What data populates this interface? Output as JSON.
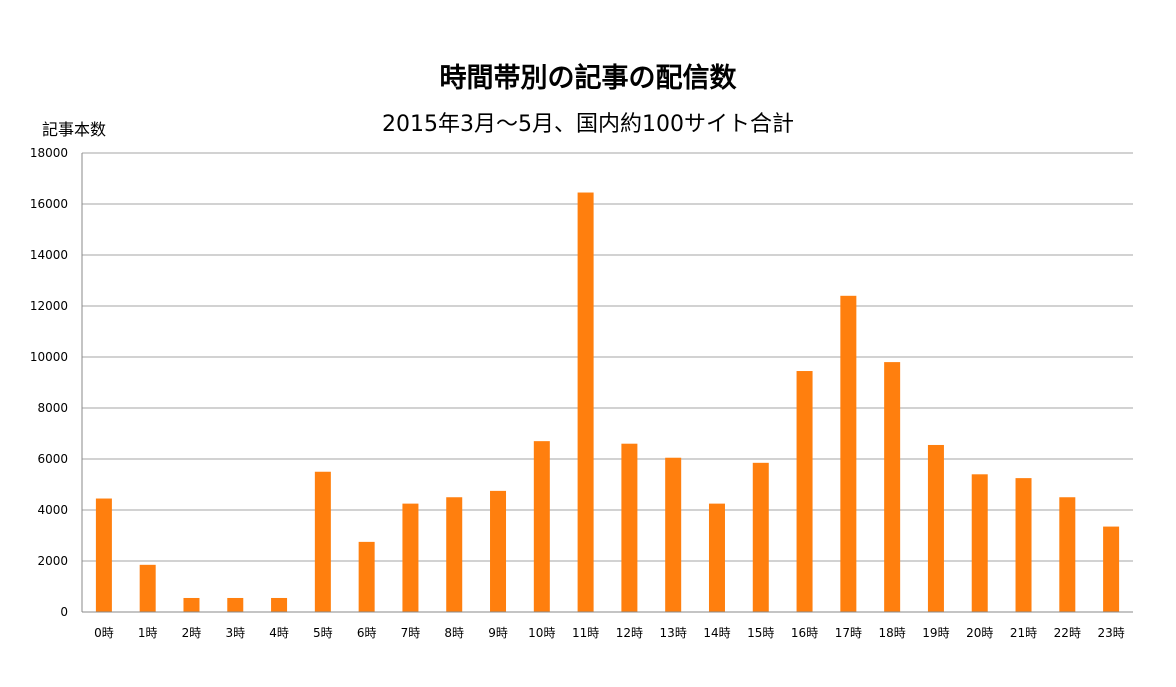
{
  "chart_data": {
    "type": "bar",
    "title": "時間帯別の記事の配信数",
    "subtitle": "2015年3月〜5月、国内約100サイト合計",
    "xlabel": "",
    "ylabel": "記事本数",
    "ylim": [
      0,
      18000
    ],
    "yticks": [
      0,
      2000,
      4000,
      6000,
      8000,
      10000,
      12000,
      14000,
      16000,
      18000
    ],
    "grid": true,
    "bar_color": "#ff7f0e",
    "categories": [
      "0時",
      "1時",
      "2時",
      "3時",
      "4時",
      "5時",
      "6時",
      "7時",
      "8時",
      "9時",
      "10時",
      "11時",
      "12時",
      "13時",
      "14時",
      "15時",
      "16時",
      "17時",
      "18時",
      "19時",
      "20時",
      "21時",
      "22時",
      "23時"
    ],
    "values": [
      4450,
      1850,
      550,
      550,
      550,
      5500,
      2750,
      4250,
      4500,
      4750,
      6700,
      16450,
      6600,
      6050,
      4250,
      5850,
      9450,
      12400,
      9800,
      6550,
      5400,
      5250,
      4500,
      3350
    ]
  }
}
